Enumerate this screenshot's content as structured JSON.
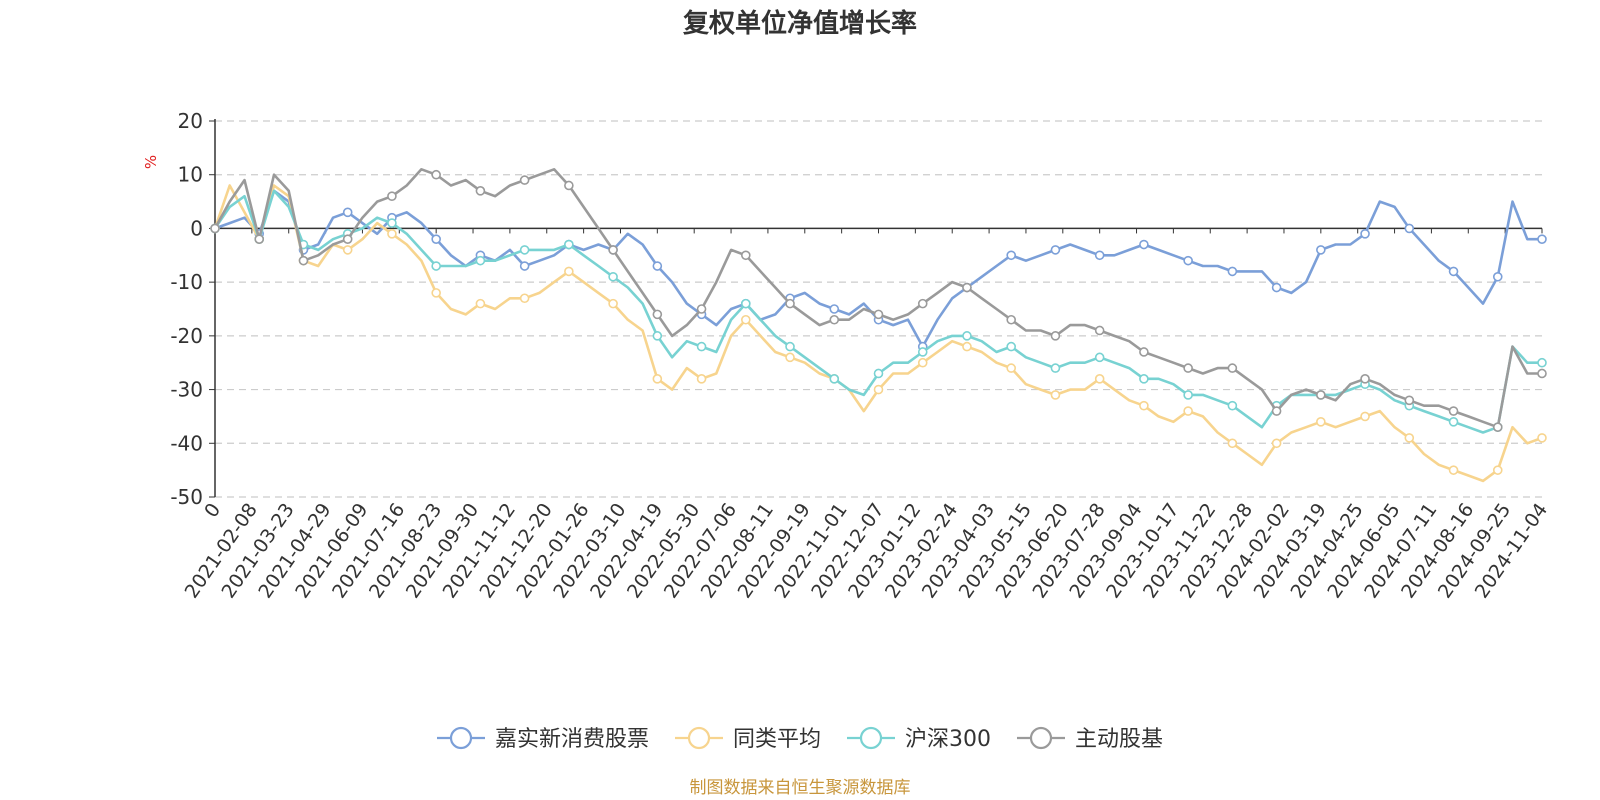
{
  "chart_data": {
    "type": "line",
    "title": "复权单位净值增长率",
    "ylabel": "%",
    "ylim": [
      -50,
      20
    ],
    "yticks": [
      20,
      10,
      0,
      -10,
      -20,
      -30,
      -40,
      -50
    ],
    "x_tick_labels": [
      "0",
      "2021-02-08",
      "2021-03-23",
      "2021-04-29",
      "2021-06-09",
      "2021-07-16",
      "2021-08-23",
      "2021-09-30",
      "2021-11-12",
      "2021-12-20",
      "2022-01-26",
      "2022-03-10",
      "2022-04-19",
      "2022-05-30",
      "2022-07-06",
      "2022-08-11",
      "2022-09-19",
      "2022-11-01",
      "2022-12-07",
      "2023-01-12",
      "2023-02-24",
      "2023-04-03",
      "2023-05-15",
      "2023-06-20",
      "2023-07-28",
      "2023-09-04",
      "2023-10-17",
      "2023-11-22",
      "2023-12-28",
      "2024-02-02",
      "2024-03-19",
      "2024-04-25",
      "2024-06-05",
      "2024-07-11",
      "2024-08-16",
      "2024-09-25",
      "2024-11-04"
    ],
    "grid": true,
    "legend_position": "bottom",
    "series": [
      {
        "name": "嘉实新消费股票",
        "color": "#7b9fd8",
        "values": [
          0,
          1,
          2,
          -1,
          7,
          5,
          -4,
          -3,
          2,
          3,
          1,
          -1,
          2,
          3,
          1,
          -2,
          -5,
          -7,
          -5,
          -6,
          -4,
          -7,
          -6,
          -5,
          -3,
          -4,
          -3,
          -4,
          -1,
          -3,
          -7,
          -10,
          -14,
          -16,
          -18,
          -15,
          -14,
          -17,
          -16,
          -13,
          -12,
          -14,
          -15,
          -16,
          -14,
          -17,
          -18,
          -17,
          -22,
          -17,
          -13,
          -11,
          -9,
          -7,
          -5,
          -6,
          -5,
          -4,
          -3,
          -4,
          -5,
          -5,
          -4,
          -3,
          -4,
          -5,
          -6,
          -7,
          -7,
          -8,
          -8,
          -8,
          -11,
          -12,
          -10,
          -4,
          -3,
          -3,
          -1,
          5,
          4,
          0,
          -3,
          -6,
          -8,
          -11,
          -14,
          -9,
          5,
          -2,
          -2
        ]
      },
      {
        "name": "同类平均",
        "color": "#f7d48e",
        "values": [
          0,
          8,
          3,
          -2,
          8,
          6,
          -6,
          -7,
          -3,
          -4,
          -2,
          1,
          -1,
          -3,
          -6,
          -12,
          -15,
          -16,
          -14,
          -15,
          -13,
          -13,
          -12,
          -10,
          -8,
          -10,
          -12,
          -14,
          -17,
          -19,
          -28,
          -30,
          -26,
          -28,
          -27,
          -20,
          -17,
          -20,
          -23,
          -24,
          -25,
          -27,
          -28,
          -30,
          -34,
          -30,
          -27,
          -27,
          -25,
          -23,
          -21,
          -22,
          -23,
          -25,
          -26,
          -29,
          -30,
          -31,
          -30,
          -30,
          -28,
          -30,
          -32,
          -33,
          -35,
          -36,
          -34,
          -35,
          -38,
          -40,
          -42,
          -44,
          -40,
          -38,
          -37,
          -36,
          -37,
          -36,
          -35,
          -34,
          -37,
          -39,
          -42,
          -44,
          -45,
          -46,
          -47,
          -45,
          -37,
          -40,
          -39
        ]
      },
      {
        "name": "沪深300",
        "color": "#78d2d2",
        "values": [
          0,
          4,
          6,
          -2,
          7,
          4,
          -3,
          -4,
          -2,
          -1,
          0,
          2,
          1,
          -1,
          -4,
          -7,
          -7,
          -7,
          -6,
          -6,
          -5,
          -4,
          -4,
          -4,
          -3,
          -5,
          -7,
          -9,
          -11,
          -14,
          -20,
          -24,
          -21,
          -22,
          -23,
          -17,
          -14,
          -17,
          -20,
          -22,
          -24,
          -26,
          -28,
          -30,
          -31,
          -27,
          -25,
          -25,
          -23,
          -21,
          -20,
          -20,
          -21,
          -23,
          -22,
          -24,
          -25,
          -26,
          -25,
          -25,
          -24,
          -25,
          -26,
          -28,
          -28,
          -29,
          -31,
          -31,
          -32,
          -33,
          -35,
          -37,
          -33,
          -31,
          -31,
          -31,
          -31,
          -30,
          -29,
          -30,
          -32,
          -33,
          -34,
          -35,
          -36,
          -37,
          -38,
          -37,
          -22,
          -25,
          -25
        ]
      },
      {
        "name": "主动股基",
        "color": "#9a9a9a",
        "values": [
          0,
          5,
          9,
          -2,
          10,
          7,
          -6,
          -5,
          -3,
          -2,
          2,
          5,
          6,
          8,
          11,
          10,
          8,
          9,
          7,
          6,
          8,
          9,
          10,
          11,
          8,
          4,
          0,
          -4,
          -8,
          -12,
          -16,
          -20,
          -18,
          -15,
          -10,
          -4,
          -5,
          -8,
          -11,
          -14,
          -16,
          -18,
          -17,
          -17,
          -15,
          -16,
          -17,
          -16,
          -14,
          -12,
          -10,
          -11,
          -13,
          -15,
          -17,
          -19,
          -19,
          -20,
          -18,
          -18,
          -19,
          -20,
          -21,
          -23,
          -24,
          -25,
          -26,
          -27,
          -26,
          -26,
          -28,
          -30,
          -34,
          -31,
          -30,
          -31,
          -32,
          -29,
          -28,
          -29,
          -31,
          -32,
          -33,
          -33,
          -34,
          -35,
          -36,
          -37,
          -22,
          -27,
          -27
        ]
      }
    ]
  },
  "source": "制图数据来自恒生聚源数据库"
}
